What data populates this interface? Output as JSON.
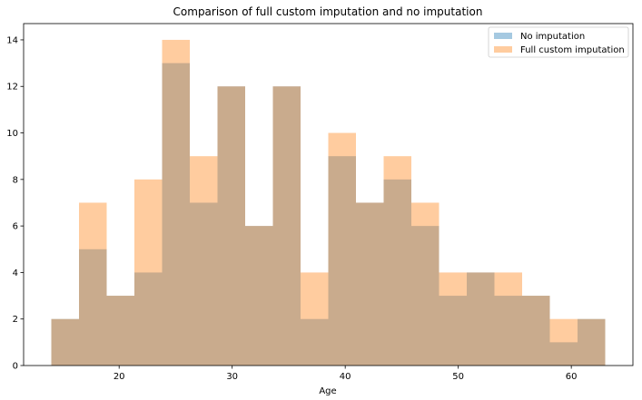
{
  "chart_data": {
    "type": "bar",
    "title": "Comparison of full custom imputation and no imputation",
    "xlabel": "Age",
    "ylabel": "",
    "xlim": [
      11.55,
      65.45
    ],
    "ylim": [
      0,
      14.7
    ],
    "xticks": [
      20,
      30,
      40,
      50,
      60
    ],
    "yticks": [
      0,
      2,
      4,
      6,
      8,
      10,
      12,
      14
    ],
    "bin_edges": [
      14,
      16.45,
      18.9,
      21.35,
      23.8,
      26.25,
      28.7,
      31.15,
      33.6,
      36.05,
      38.5,
      40.95,
      43.4,
      45.85,
      48.3,
      50.75,
      53.2,
      55.65,
      58.1,
      60.55,
      63
    ],
    "legend_position": "top-right",
    "grid": false,
    "series": [
      {
        "name": "No imputation",
        "color": "#1f77b4",
        "opacity": 0.4,
        "values": [
          2,
          5,
          3,
          4,
          13,
          7,
          12,
          6,
          12,
          2,
          9,
          7,
          8,
          6,
          3,
          4,
          3,
          3,
          1,
          2
        ]
      },
      {
        "name": "Full custom imputation",
        "color": "#ff7f0e",
        "opacity": 0.4,
        "values": [
          2,
          7,
          3,
          8,
          14,
          9,
          12,
          6,
          12,
          4,
          10,
          7,
          9,
          7,
          4,
          4,
          4,
          3,
          2,
          2
        ]
      }
    ]
  }
}
